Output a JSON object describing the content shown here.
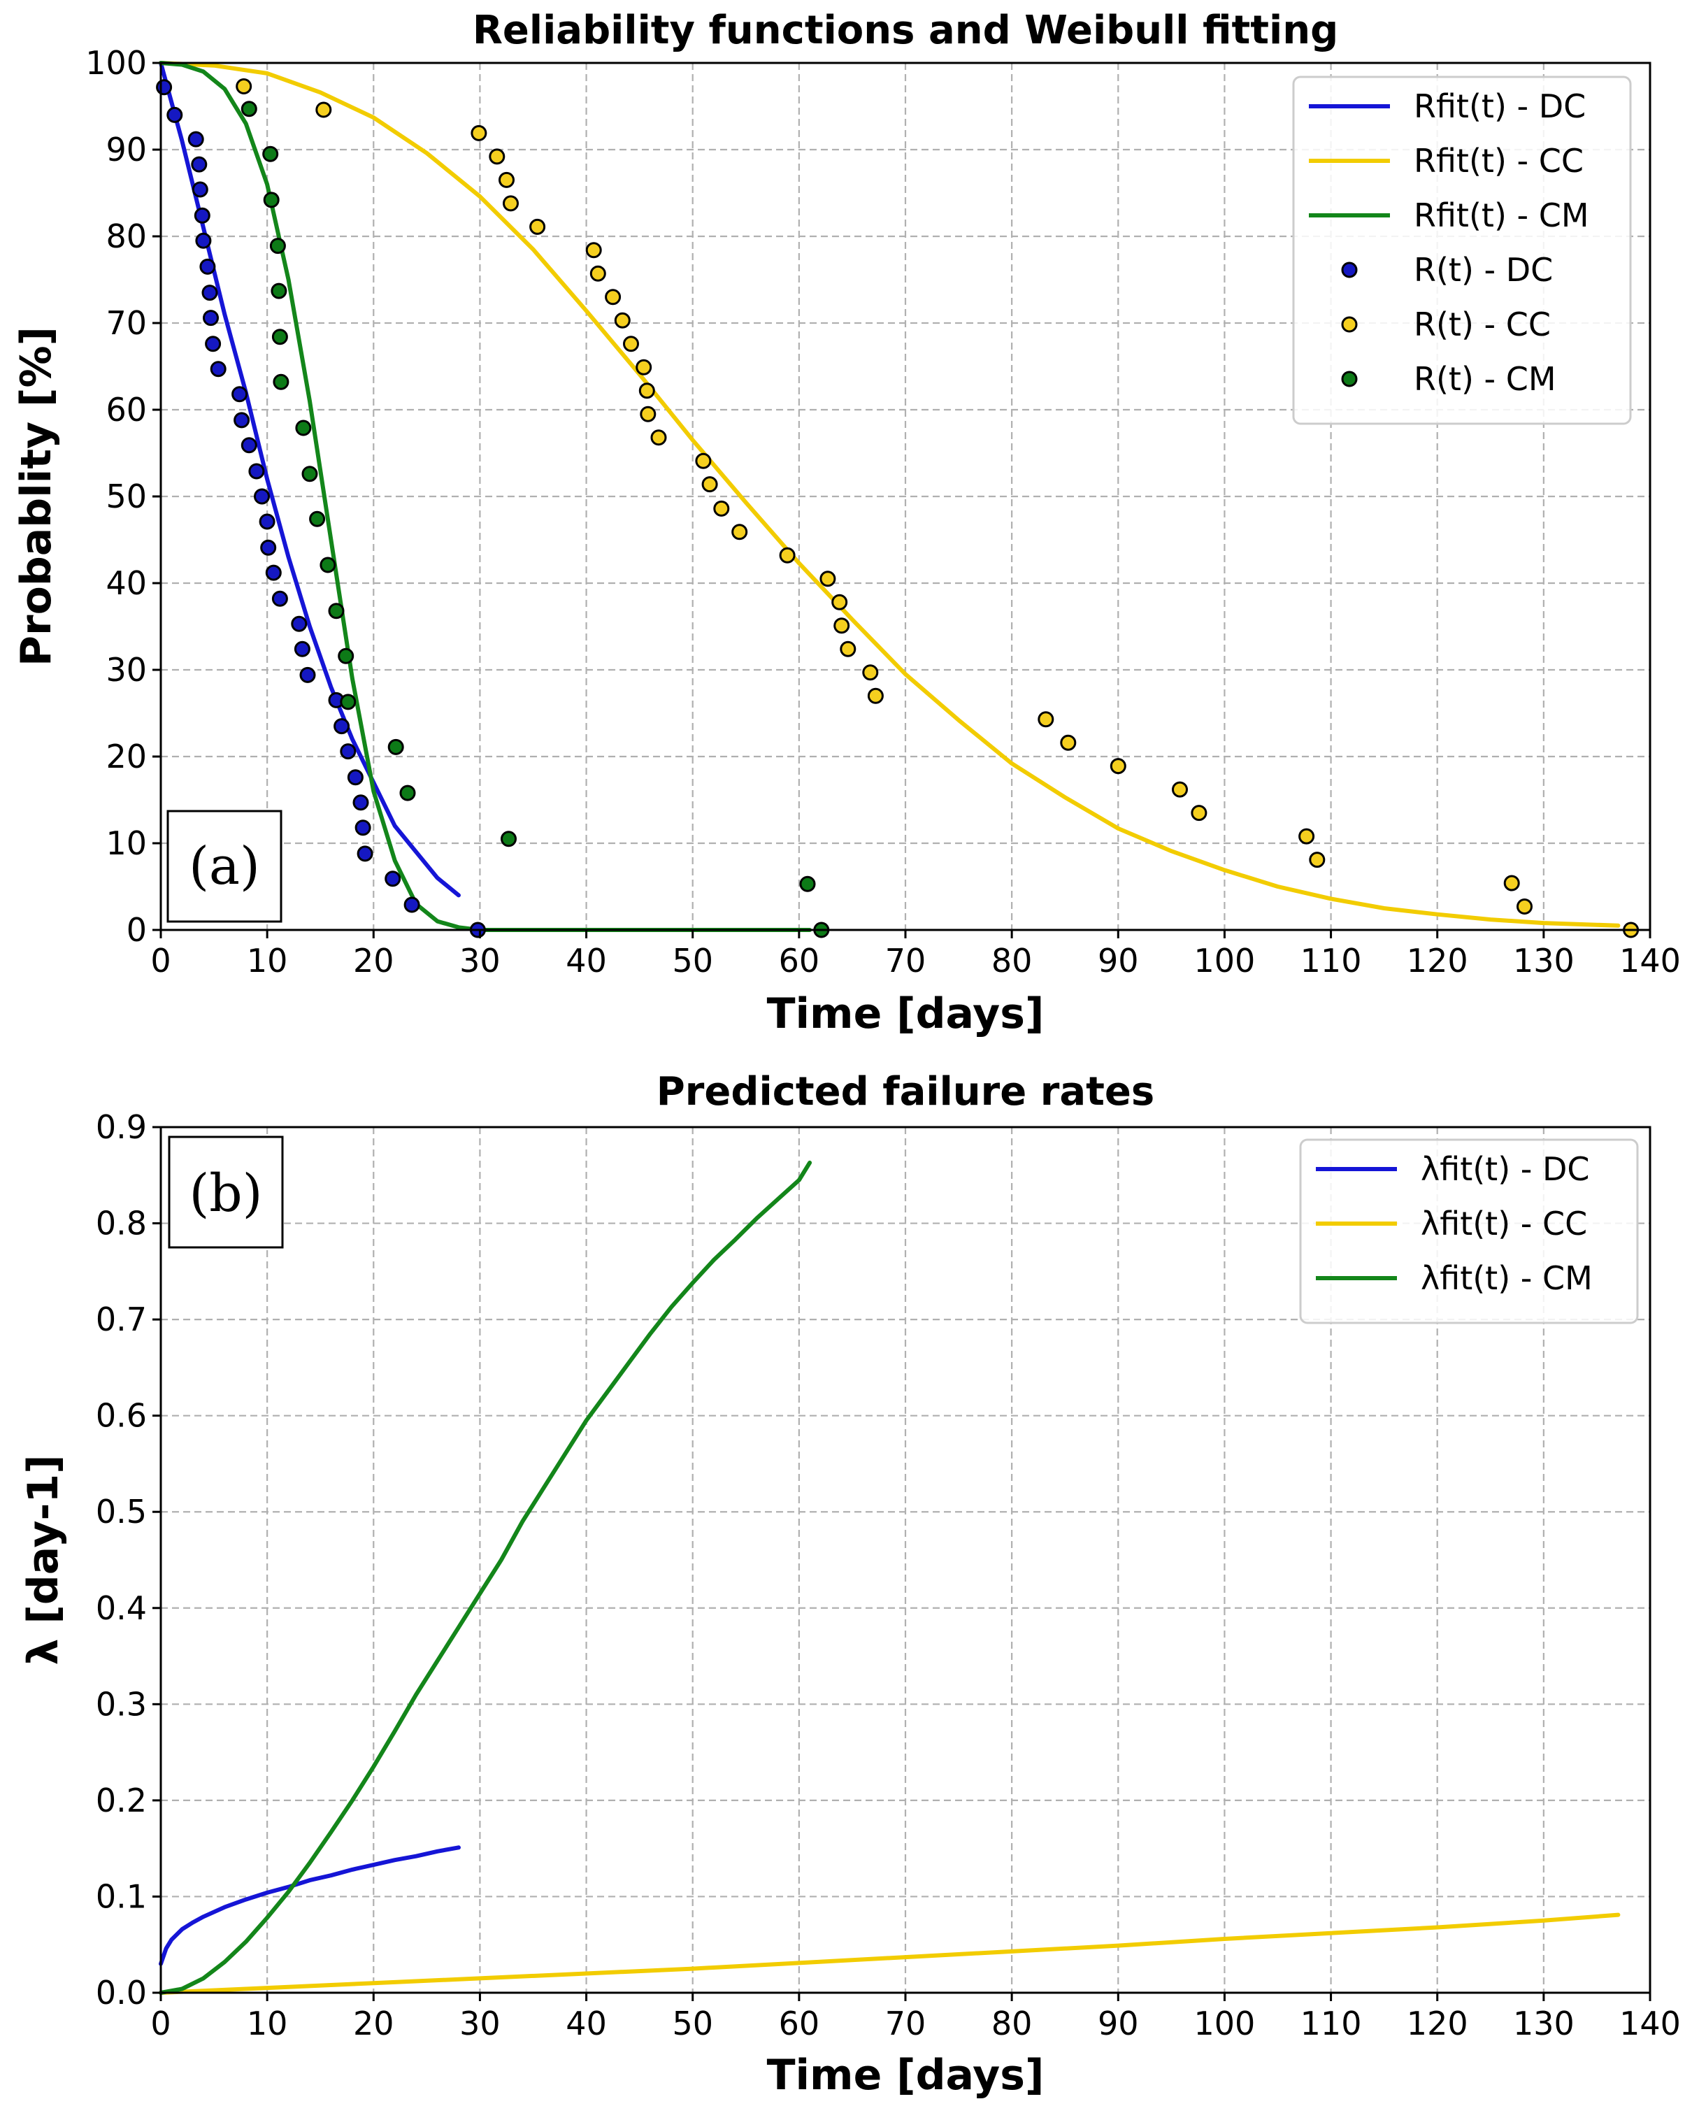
{
  "chart_data": [
    {
      "type": "line+scatter",
      "panel_label": "(a)",
      "title": "Reliability functions and Weibull fitting",
      "xlabel": "Time [days]",
      "ylabel": "Probablity [%]",
      "xlim": [
        0,
        140
      ],
      "ylim": [
        0,
        100
      ],
      "xticks": [
        0,
        10,
        20,
        30,
        40,
        50,
        60,
        70,
        80,
        90,
        100,
        110,
        120,
        130,
        140
      ],
      "yticks": [
        0,
        10,
        20,
        30,
        40,
        50,
        60,
        70,
        80,
        90,
        100
      ],
      "grid": true,
      "legend_position": "top-right",
      "lines": [
        {
          "name": "Rfit(t) - DC",
          "color": "#1515d6",
          "points": [
            [
              0,
              100
            ],
            [
              2,
              91
            ],
            [
              4,
              81
            ],
            [
              6,
              71
            ],
            [
              8,
              62
            ],
            [
              10,
              52
            ],
            [
              12,
              43
            ],
            [
              14,
              35
            ],
            [
              16,
              28
            ],
            [
              18,
              22
            ],
            [
              20,
              17
            ],
            [
              22,
              12
            ],
            [
              24,
              9
            ],
            [
              26,
              6
            ],
            [
              28,
              4
            ]
          ]
        },
        {
          "name": "Rfit(t) - CC",
          "color": "#f2cc00",
          "points": [
            [
              0,
              100
            ],
            [
              5,
              99.7
            ],
            [
              10,
              98.8
            ],
            [
              15,
              96.6
            ],
            [
              20,
              93.7
            ],
            [
              25,
              89.6
            ],
            [
              30,
              84.6
            ],
            [
              35,
              78.5
            ],
            [
              40,
              71.4
            ],
            [
              45,
              64.1
            ],
            [
              50,
              56.5
            ],
            [
              55,
              49.3
            ],
            [
              60,
              42.3
            ],
            [
              65,
              35.8
            ],
            [
              70,
              29.5
            ],
            [
              75,
              24.2
            ],
            [
              80,
              19.2
            ],
            [
              85,
              15.3
            ],
            [
              90,
              11.7
            ],
            [
              95,
              9.1
            ],
            [
              100,
              6.9
            ],
            [
              105,
              5.0
            ],
            [
              110,
              3.6
            ],
            [
              115,
              2.5
            ],
            [
              120,
              1.8
            ],
            [
              125,
              1.2
            ],
            [
              130,
              0.8
            ],
            [
              137,
              0.5
            ]
          ]
        },
        {
          "name": "Rfit(t) - CM",
          "color": "#13861a",
          "points": [
            [
              0,
              100
            ],
            [
              2,
              99.8
            ],
            [
              4,
              99
            ],
            [
              6,
              97
            ],
            [
              8,
              93
            ],
            [
              10,
              86
            ],
            [
              12,
              75
            ],
            [
              14,
              61
            ],
            [
              16,
              45
            ],
            [
              18,
              29
            ],
            [
              20,
              16
            ],
            [
              22,
              8
            ],
            [
              24,
              3
            ],
            [
              26,
              1
            ],
            [
              28,
              0.3
            ],
            [
              30,
              0
            ],
            [
              40,
              0
            ],
            [
              50,
              0
            ],
            [
              61,
              0
            ]
          ]
        }
      ],
      "scatter": [
        {
          "name": "R(t) - DC",
          "color": "#1518c2",
          "points": [
            [
              0.3,
              97.2
            ],
            [
              1.3,
              94
            ],
            [
              3.3,
              91.2
            ],
            [
              3.6,
              88.3
            ],
            [
              3.7,
              85.4
            ],
            [
              3.9,
              82.4
            ],
            [
              4,
              79.5
            ],
            [
              4.4,
              76.5
            ],
            [
              4.6,
              73.5
            ],
            [
              4.7,
              70.6
            ],
            [
              4.9,
              67.6
            ],
            [
              5.4,
              64.7
            ],
            [
              7.4,
              61.8
            ],
            [
              7.6,
              58.8
            ],
            [
              8.3,
              55.9
            ],
            [
              9,
              52.9
            ],
            [
              9.5,
              50
            ],
            [
              10,
              47.1
            ],
            [
              10.1,
              44.1
            ],
            [
              10.6,
              41.2
            ],
            [
              11.2,
              38.2
            ],
            [
              13,
              35.3
            ],
            [
              13.3,
              32.4
            ],
            [
              13.8,
              29.4
            ],
            [
              16.5,
              26.5
            ],
            [
              17,
              23.5
            ],
            [
              17.6,
              20.6
            ],
            [
              18.3,
              17.6
            ],
            [
              18.8,
              14.7
            ],
            [
              19,
              11.8
            ],
            [
              19.2,
              8.8
            ],
            [
              21.8,
              5.9
            ],
            [
              23.6,
              2.9
            ],
            [
              29.8,
              0
            ]
          ]
        },
        {
          "name": "R(t) - CC",
          "color": "#f5cf1f",
          "points": [
            [
              7.8,
              97.3
            ],
            [
              15.3,
              94.6
            ],
            [
              29.9,
              91.9
            ],
            [
              31.6,
              89.2
            ],
            [
              32.5,
              86.5
            ],
            [
              32.9,
              83.8
            ],
            [
              35.4,
              81.1
            ],
            [
              40.7,
              78.4
            ],
            [
              41.1,
              75.7
            ],
            [
              42.5,
              73
            ],
            [
              43.4,
              70.3
            ],
            [
              44.2,
              67.6
            ],
            [
              45.4,
              64.9
            ],
            [
              45.7,
              62.2
            ],
            [
              45.8,
              59.5
            ],
            [
              46.8,
              56.8
            ],
            [
              51,
              54.1
            ],
            [
              51.6,
              51.4
            ],
            [
              52.7,
              48.6
            ],
            [
              54.4,
              45.9
            ],
            [
              58.9,
              43.2
            ],
            [
              62.7,
              40.5
            ],
            [
              63.8,
              37.8
            ],
            [
              64,
              35.1
            ],
            [
              64.6,
              32.4
            ],
            [
              66.7,
              29.7
            ],
            [
              67.2,
              27
            ],
            [
              83.2,
              24.3
            ],
            [
              85.3,
              21.6
            ],
            [
              90,
              18.9
            ],
            [
              95.8,
              16.2
            ],
            [
              97.6,
              13.5
            ],
            [
              107.7,
              10.8
            ],
            [
              108.7,
              8.1
            ],
            [
              127,
              5.4
            ],
            [
              128.2,
              2.7
            ],
            [
              138.2,
              0
            ]
          ]
        },
        {
          "name": "R(t) - CM",
          "color": "#0d7a17",
          "points": [
            [
              8.3,
              94.7
            ],
            [
              10.3,
              89.5
            ],
            [
              10.4,
              84.2
            ],
            [
              11,
              78.9
            ],
            [
              11.1,
              73.7
            ],
            [
              11.2,
              68.4
            ],
            [
              11.3,
              63.2
            ],
            [
              13.4,
              57.9
            ],
            [
              14,
              52.6
            ],
            [
              14.7,
              47.4
            ],
            [
              15.7,
              42.1
            ],
            [
              16.5,
              36.8
            ],
            [
              17.4,
              31.6
            ],
            [
              17.6,
              26.3
            ],
            [
              22.1,
              21.1
            ],
            [
              23.2,
              15.8
            ],
            [
              32.7,
              10.5
            ],
            [
              60.8,
              5.3
            ],
            [
              62.1,
              0
            ]
          ]
        }
      ]
    },
    {
      "type": "line",
      "panel_label": "(b)",
      "title": "Predicted failure rates",
      "xlabel": "Time [days]",
      "ylabel": "λ [day-1]",
      "xlim": [
        0,
        140
      ],
      "ylim": [
        0,
        0.9
      ],
      "xticks": [
        0,
        10,
        20,
        30,
        40,
        50,
        60,
        70,
        80,
        90,
        100,
        110,
        120,
        130,
        140
      ],
      "yticks": [
        "0.0",
        "0.1",
        "0.2",
        "0.3",
        "0.4",
        "0.5",
        "0.6",
        "0.7",
        "0.8",
        "0.9"
      ],
      "grid": true,
      "legend_position": "top-right",
      "lines": [
        {
          "name": "λfit(t) - DC",
          "color": "#1515d6",
          "points": [
            [
              0,
              0.03
            ],
            [
              0.5,
              0.046
            ],
            [
              1,
              0.055
            ],
            [
              2,
              0.066
            ],
            [
              3,
              0.073
            ],
            [
              4,
              0.079
            ],
            [
              6,
              0.089
            ],
            [
              8,
              0.097
            ],
            [
              10,
              0.104
            ],
            [
              12,
              0.11
            ],
            [
              14,
              0.117
            ],
            [
              16,
              0.122
            ],
            [
              18,
              0.128
            ],
            [
              20,
              0.133
            ],
            [
              22,
              0.138
            ],
            [
              24,
              0.142
            ],
            [
              26,
              0.147
            ],
            [
              28,
              0.151
            ]
          ]
        },
        {
          "name": "λfit(t) - CC",
          "color": "#f2cc00",
          "points": [
            [
              0,
              0
            ],
            [
              10,
              0.005
            ],
            [
              20,
              0.01
            ],
            [
              30,
              0.015
            ],
            [
              40,
              0.02
            ],
            [
              50,
              0.025
            ],
            [
              60,
              0.031
            ],
            [
              70,
              0.037
            ],
            [
              80,
              0.043
            ],
            [
              90,
              0.049
            ],
            [
              100,
              0.056
            ],
            [
              110,
              0.062
            ],
            [
              120,
              0.068
            ],
            [
              130,
              0.075
            ],
            [
              137,
              0.081
            ]
          ]
        },
        {
          "name": "λfit(t) - CM",
          "color": "#13861a",
          "points": [
            [
              0,
              0
            ],
            [
              2,
              0.004
            ],
            [
              4,
              0.015
            ],
            [
              6,
              0.032
            ],
            [
              8,
              0.053
            ],
            [
              10,
              0.078
            ],
            [
              12,
              0.105
            ],
            [
              14,
              0.135
            ],
            [
              16,
              0.167
            ],
            [
              18,
              0.2
            ],
            [
              20,
              0.235
            ],
            [
              22,
              0.272
            ],
            [
              24,
              0.31
            ],
            [
              26,
              0.345
            ],
            [
              28,
              0.38
            ],
            [
              30,
              0.415
            ],
            [
              32,
              0.45
            ],
            [
              34,
              0.49
            ],
            [
              36,
              0.525
            ],
            [
              38,
              0.56
            ],
            [
              40,
              0.595
            ],
            [
              42,
              0.625
            ],
            [
              44,
              0.655
            ],
            [
              46,
              0.685
            ],
            [
              48,
              0.713
            ],
            [
              50,
              0.738
            ],
            [
              52,
              0.762
            ],
            [
              54,
              0.783
            ],
            [
              56,
              0.805
            ],
            [
              58,
              0.825
            ],
            [
              60,
              0.845
            ],
            [
              61,
              0.863
            ]
          ]
        }
      ]
    }
  ]
}
